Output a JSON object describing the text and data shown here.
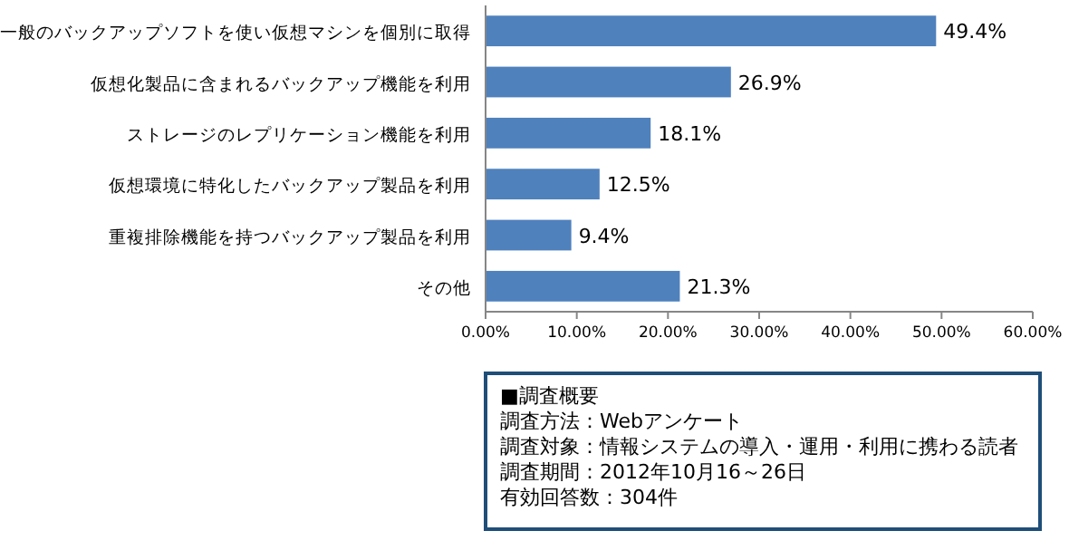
{
  "chart_data": {
    "type": "bar",
    "orientation": "horizontal",
    "categories": [
      "一般のバックアップソフトを使い仮想マシンを個別に取得",
      "仮想化製品に含まれるバックアップ機能を利用",
      "ストレージのレプリケーション機能を利用",
      "仮想環境に特化したバックアップ製品を利用",
      "重複排除機能を持つバックアップ製品を利用",
      "その他"
    ],
    "values": [
      49.4,
      26.9,
      18.1,
      12.5,
      9.4,
      21.3
    ],
    "color": "#4f81bd",
    "value_labels": [
      "49.4%",
      "26.9%",
      "18.1%",
      "12.5%",
      "9.4%",
      "21.3%"
    ],
    "xlim": [
      0,
      60
    ],
    "xticks": [
      {
        "value": 0,
        "label": "0.00%"
      },
      {
        "value": 10,
        "label": "10.00%"
      },
      {
        "value": 20,
        "label": "20.00%"
      },
      {
        "value": 30,
        "label": "30.00%"
      },
      {
        "value": 40,
        "label": "40.00%"
      },
      {
        "value": 50,
        "label": "50.00%"
      },
      {
        "value": 60,
        "label": "60.00%"
      }
    ],
    "grid": false,
    "annotations": [
      "■調査概要",
      "調査方法：Webアンケート",
      "調査対象：情報システムの導入・運用・利用に携わる読者",
      "調査期間：2012年10月16～26日",
      "有効回答数：304件"
    ]
  }
}
